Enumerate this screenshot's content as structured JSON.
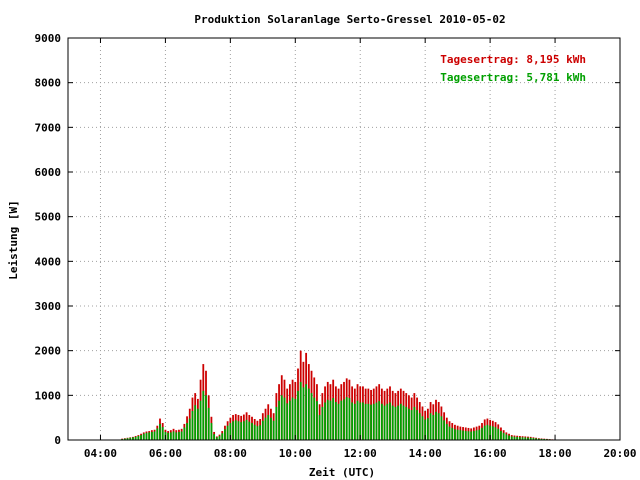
{
  "chart_data": {
    "type": "bar",
    "title": "Produktion Solaranlage Serto-Gressel 2010-05-02",
    "xlabel": "Zeit (UTC)",
    "ylabel": "Leistung [W]",
    "ylim": [
      0,
      9000
    ],
    "xlim": [
      "03:00",
      "20:00"
    ],
    "y_ticks": [
      "0",
      "1000",
      "2000",
      "3000",
      "4000",
      "5000",
      "6000",
      "7000",
      "8000",
      "9000"
    ],
    "x_ticks": [
      "04:00",
      "06:00",
      "08:00",
      "10:00",
      "12:00",
      "14:00",
      "16:00",
      "18:00",
      "20:00"
    ],
    "grid": true,
    "legend_position": "top-right",
    "colors": {
      "series_red": "#cc0000",
      "series_green": "#00a000"
    },
    "series": [
      {
        "name": "Tagesertrag: 8,195 kWh",
        "color": "#cc0000"
      },
      {
        "name": "Tagesertrag: 5,781 kWh",
        "color": "#00a000"
      }
    ],
    "time_step_minutes": 5,
    "x_start": "04:40",
    "red_values": [
      30,
      40,
      50,
      60,
      70,
      90,
      110,
      140,
      170,
      190,
      200,
      220,
      230,
      320,
      480,
      380,
      230,
      200,
      220,
      250,
      220,
      230,
      250,
      360,
      530,
      700,
      950,
      1050,
      920,
      1350,
      1700,
      1550,
      1000,
      520,
      180,
      80,
      120,
      200,
      320,
      420,
      500,
      560,
      580,
      560,
      540,
      570,
      620,
      560,
      520,
      470,
      430,
      470,
      600,
      700,
      800,
      700,
      600,
      1050,
      1250,
      1450,
      1350,
      1150,
      1250,
      1350,
      1300,
      1600,
      2000,
      1750,
      1950,
      1700,
      1550,
      1400,
      1250,
      800,
      1050,
      1200,
      1300,
      1250,
      1350,
      1200,
      1150,
      1250,
      1300,
      1380,
      1350,
      1200,
      1150,
      1250,
      1200,
      1200,
      1150,
      1150,
      1120,
      1150,
      1200,
      1250,
      1150,
      1100,
      1150,
      1200,
      1100,
      1050,
      1100,
      1150,
      1100,
      1050,
      1000,
      950,
      1050,
      950,
      850,
      750,
      650,
      700,
      850,
      800,
      900,
      850,
      750,
      620,
      500,
      420,
      380,
      340,
      320,
      300,
      290,
      280,
      270,
      260,
      280,
      300,
      320,
      380,
      460,
      480,
      450,
      430,
      400,
      350,
      280,
      220,
      170,
      140,
      110,
      100,
      95,
      90,
      85,
      80,
      75,
      70,
      60,
      50,
      40,
      35,
      30,
      25,
      20,
      15
    ],
    "green_values": [
      20,
      30,
      40,
      50,
      60,
      70,
      90,
      110,
      140,
      160,
      170,
      180,
      190,
      260,
      360,
      290,
      180,
      160,
      170,
      190,
      170,
      180,
      190,
      280,
      380,
      480,
      650,
      780,
      700,
      880,
      1100,
      1000,
      720,
      380,
      130,
      60,
      90,
      150,
      240,
      320,
      380,
      420,
      440,
      420,
      400,
      420,
      450,
      410,
      380,
      340,
      310,
      330,
      430,
      500,
      560,
      500,
      430,
      740,
      880,
      1000,
      950,
      820,
      880,
      950,
      920,
      1100,
      1300,
      1180,
      1250,
      1150,
      1050,
      950,
      870,
      560,
      740,
      840,
      900,
      880,
      940,
      850,
      810,
      880,
      910,
      960,
      940,
      840,
      810,
      880,
      840,
      840,
      810,
      810,
      790,
      810,
      840,
      870,
      810,
      770,
      810,
      840,
      770,
      740,
      770,
      810,
      770,
      740,
      700,
      670,
      740,
      670,
      600,
      530,
      460,
      490,
      600,
      560,
      630,
      600,
      530,
      440,
      360,
      300,
      270,
      240,
      230,
      220,
      210,
      200,
      195,
      190,
      200,
      215,
      230,
      270,
      320,
      340,
      320,
      305,
      285,
      250,
      200,
      160,
      125,
      100,
      80,
      72,
      68,
      63,
      60,
      57,
      53,
      50,
      43,
      36,
      28,
      25,
      22,
      18,
      15,
      11
    ]
  }
}
